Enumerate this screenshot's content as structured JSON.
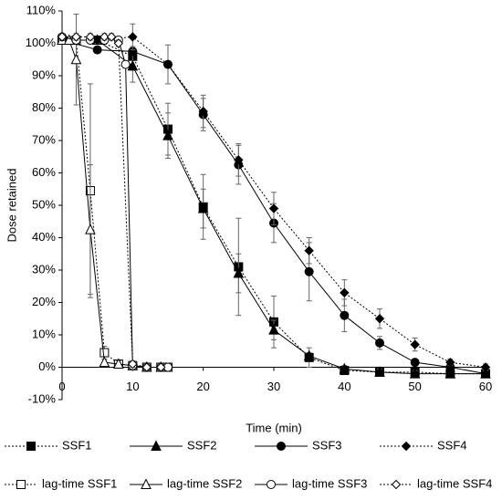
{
  "chart_data": {
    "type": "line",
    "xlabel": "Time (min)",
    "ylabel": "Dose retained",
    "xlim": [
      0,
      60
    ],
    "xticks": [
      0,
      10,
      20,
      30,
      40,
      50,
      60
    ],
    "ylim": [
      -10,
      110
    ],
    "yticks": [
      {
        "value": -10,
        "label": "-10%"
      },
      {
        "value": 0,
        "label": "0%"
      },
      {
        "value": 10,
        "label": "10%"
      },
      {
        "value": 20,
        "label": "20%"
      },
      {
        "value": 30,
        "label": "30%"
      },
      {
        "value": 40,
        "label": "40%"
      },
      {
        "value": 50,
        "label": "50%"
      },
      {
        "value": 60,
        "label": "60%"
      },
      {
        "value": 70,
        "label": "70%"
      },
      {
        "value": 80,
        "label": "80%"
      },
      {
        "value": 90,
        "label": "90%"
      },
      {
        "value": 100,
        "label": "100%"
      },
      {
        "value": 110,
        "label": "110%"
      }
    ],
    "grid": false,
    "legend": "bottom",
    "series": [
      {
        "name": "SSF1",
        "color": "#000000",
        "marker": "square",
        "filled": true,
        "dashed": true,
        "x": [
          0,
          5,
          10,
          15,
          20,
          25,
          30,
          35,
          40,
          45,
          50,
          55,
          60
        ],
        "values": [
          101,
          101,
          96,
          73.5,
          49.5,
          31,
          14,
          3,
          -1,
          -1.5,
          -1.5,
          -2,
          -2
        ],
        "errors": [
          1,
          1,
          3,
          8,
          10,
          15,
          8,
          3,
          1,
          1,
          1,
          1,
          1
        ]
      },
      {
        "name": "SSF2",
        "color": "#000000",
        "marker": "triangle",
        "filled": true,
        "dashed": false,
        "x": [
          0,
          5,
          10,
          15,
          20,
          25,
          30,
          35,
          40,
          45,
          50,
          55,
          60
        ],
        "values": [
          101,
          101,
          93,
          71.5,
          49,
          29,
          11.5,
          3.5,
          -0.5,
          -1.5,
          -2,
          -2,
          -2
        ],
        "errors": [
          1,
          1,
          5,
          7,
          6,
          6,
          3,
          1,
          1,
          1,
          1,
          1,
          1
        ]
      },
      {
        "name": "SSF3",
        "color": "#000000",
        "marker": "circle",
        "filled": true,
        "dashed": false,
        "x": [
          0,
          5,
          10,
          15,
          20,
          25,
          30,
          35,
          40,
          45,
          50,
          55,
          60
        ],
        "values": [
          101,
          98,
          97.5,
          93.5,
          78,
          62.5,
          44.5,
          29.5,
          16,
          7.5,
          1.5,
          0,
          -2
        ],
        "errors": [
          1,
          1,
          1,
          1,
          5,
          6,
          6,
          9,
          5,
          2,
          1,
          1,
          1
        ]
      },
      {
        "name": "SSF4",
        "color": "#000000",
        "marker": "diamond",
        "filled": true,
        "dashed": true,
        "x": [
          0,
          5,
          10,
          15,
          20,
          25,
          30,
          35,
          40,
          45,
          50,
          55,
          60
        ],
        "values": [
          101,
          101,
          102,
          93.5,
          79,
          64,
          49,
          36,
          23,
          15,
          7,
          1.5,
          0
        ],
        "errors": [
          1,
          1,
          4,
          6,
          5,
          5,
          5,
          4,
          4,
          3,
          2,
          1,
          1
        ]
      },
      {
        "name": "lag-time SSF1",
        "color": "#000000",
        "marker": "square",
        "filled": false,
        "dashed": true,
        "x": [
          0,
          2,
          4,
          6,
          8,
          10,
          12,
          14,
          15
        ],
        "values": [
          101,
          101,
          54.5,
          4.5,
          1,
          0.5,
          0,
          0,
          0
        ],
        "errors": [
          1,
          1,
          33,
          2,
          1,
          1,
          1,
          1,
          1
        ]
      },
      {
        "name": "lag-time SSF2",
        "color": "#000000",
        "marker": "triangle",
        "filled": false,
        "dashed": false,
        "x": [
          0,
          1,
          2,
          4,
          6,
          8,
          10,
          12,
          14
        ],
        "values": [
          101,
          101,
          95,
          42.5,
          1.5,
          1,
          0.5,
          0,
          0
        ],
        "errors": [
          1,
          1,
          14,
          20,
          1,
          1,
          1,
          1,
          1
        ]
      },
      {
        "name": "lag-time SSF3",
        "color": "#000000",
        "marker": "circle",
        "filled": false,
        "dashed": false,
        "x": [
          0,
          2,
          4,
          6,
          8,
          9,
          10,
          12,
          14,
          15
        ],
        "values": [
          102,
          101,
          101,
          101,
          101,
          93.5,
          0.5,
          0,
          0,
          0
        ],
        "errors": [
          1,
          1,
          1,
          1,
          1,
          1,
          1,
          1,
          1,
          1
        ]
      },
      {
        "name": "lag-time SSF4",
        "color": "#000000",
        "marker": "diamond",
        "filled": false,
        "dashed": true,
        "x": [
          0,
          2,
          4,
          6,
          7,
          8,
          10,
          12,
          14
        ],
        "values": [
          102,
          102,
          102,
          102,
          102,
          100,
          1,
          0,
          0
        ],
        "errors": [
          1,
          1,
          1,
          1,
          1,
          1,
          1,
          1,
          1
        ]
      }
    ]
  }
}
